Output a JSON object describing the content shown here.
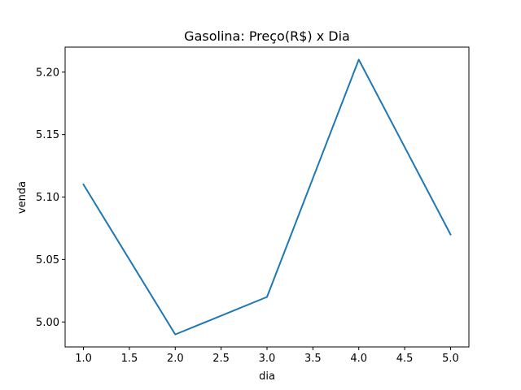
{
  "chart_data": {
    "type": "line",
    "title": "Gasolina: Preço(R$) x Dia",
    "xlabel": "dia",
    "ylabel": "venda",
    "x": [
      1.0,
      2.0,
      3.0,
      4.0,
      5.0
    ],
    "series": [
      {
        "values": [
          5.11,
          4.99,
          5.02,
          5.21,
          5.07
        ],
        "color": "#1f77b4"
      }
    ],
    "xlim": [
      0.8,
      5.2
    ],
    "ylim": [
      4.98,
      5.22
    ],
    "xticks": [
      1.0,
      1.5,
      2.0,
      2.5,
      3.0,
      3.5,
      4.0,
      4.5,
      5.0
    ],
    "xtick_labels": [
      "1.0",
      "1.5",
      "2.0",
      "2.5",
      "3.0",
      "3.5",
      "4.0",
      "4.5",
      "5.0"
    ],
    "yticks": [
      5.0,
      5.05,
      5.1,
      5.15,
      5.2
    ],
    "ytick_labels": [
      "5.00",
      "5.05",
      "5.10",
      "5.15",
      "5.20"
    ],
    "grid": false,
    "legend": "none"
  }
}
